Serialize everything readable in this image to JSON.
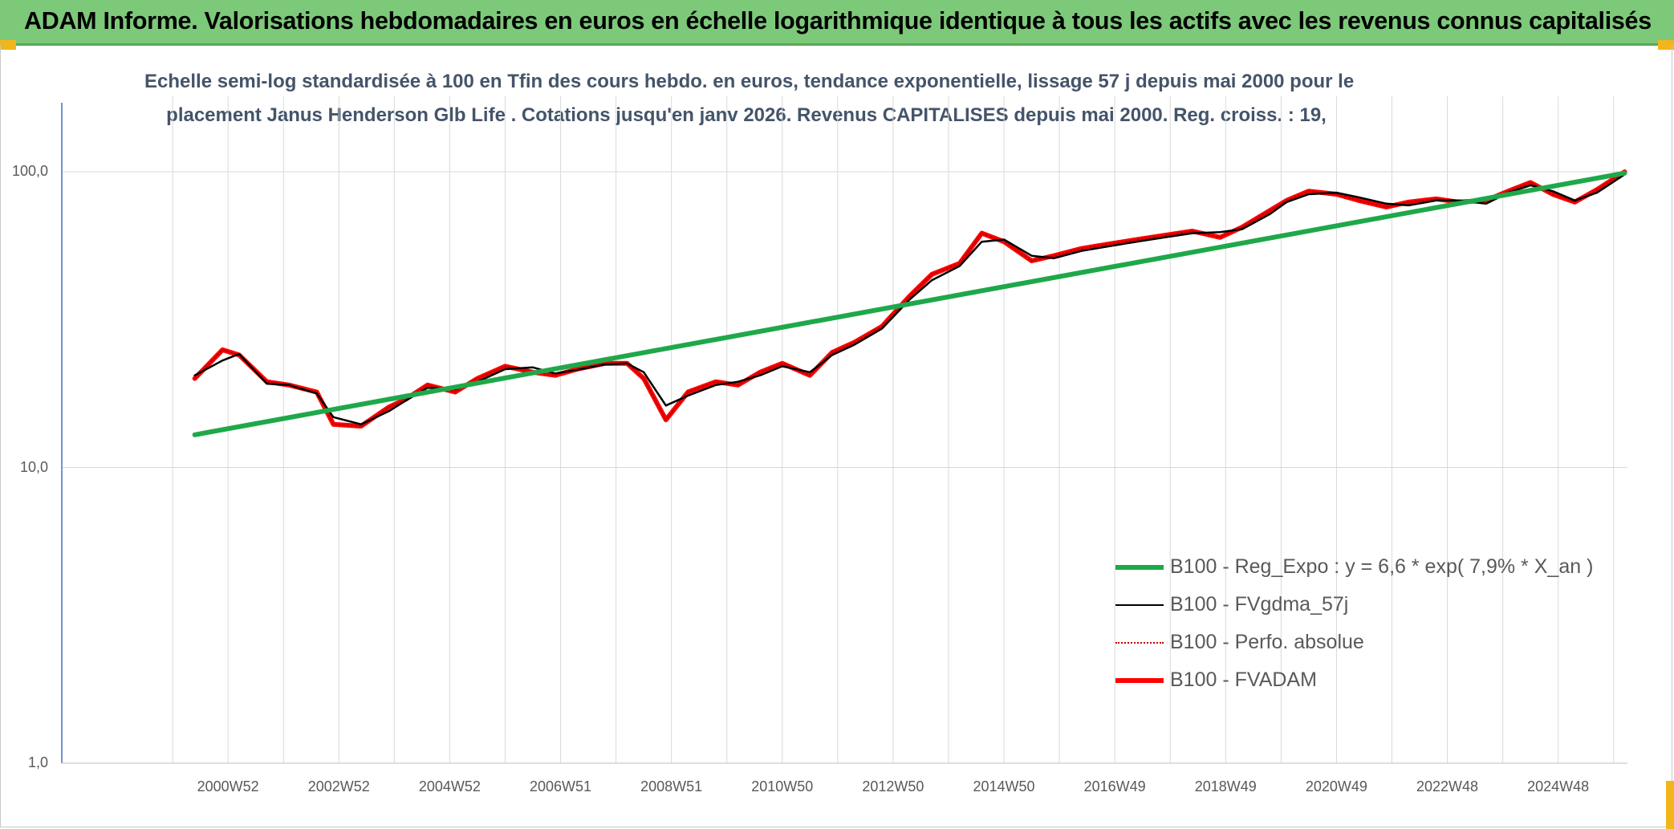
{
  "banner": {
    "title": "ADAM Informe. Valorisations hebdomadaires en euros en échelle logarithmique identique à tous les actifs avec les revenus connus capitalisés"
  },
  "chart_data": {
    "type": "line",
    "title_line1": "Echelle semi-log standardisée à 100 en Tfin des cours hebdo. en euros, tendance exponentielle, lissage 57 j depuis mai 2000 pour le",
    "title_line2": "placement Janus Henderson Glb Life . Cotations jusqu'en janv 2026. Revenus CAPITALISES depuis mai 2000. Reg. croiss. : 19,",
    "y_scale": "log",
    "ylim": [
      1,
      180
    ],
    "y_ticks": [
      {
        "value": 100,
        "label": "100,0"
      },
      {
        "value": 10,
        "label": "10,0"
      },
      {
        "value": 1,
        "label": "1,0"
      }
    ],
    "xlim": [
      1998.0,
      2026.25
    ],
    "x_ticks": [
      {
        "x": 2001.0,
        "label": "2000W52"
      },
      {
        "x": 2003.0,
        "label": "2002W52"
      },
      {
        "x": 2005.0,
        "label": "2004W52"
      },
      {
        "x": 2007.0,
        "label": "2006W51"
      },
      {
        "x": 2009.0,
        "label": "2008W51"
      },
      {
        "x": 2011.0,
        "label": "2010W50"
      },
      {
        "x": 2013.0,
        "label": "2012W50"
      },
      {
        "x": 2015.0,
        "label": "2014W50"
      },
      {
        "x": 2017.0,
        "label": "2016W49"
      },
      {
        "x": 2019.0,
        "label": "2018W49"
      },
      {
        "x": 2021.0,
        "label": "2020W49"
      },
      {
        "x": 2023.0,
        "label": "2022W48"
      },
      {
        "x": 2025.0,
        "label": "2024W48"
      }
    ],
    "grid": true,
    "legend_position": "bottom-right",
    "series": [
      {
        "name": "B100 - Reg_Expo : y = 6,6 * exp( 7,9% *  X_an )",
        "color": "#1fa84a",
        "style": "thick",
        "x": [
          2000.4,
          2026.2
        ],
        "y": [
          12.9,
          99.0
        ]
      },
      {
        "name": "B100 - FVgdma_57j",
        "color": "#000000",
        "style": "thin",
        "x": [
          2000.4,
          2000.9,
          2001.2,
          2001.7,
          2002.1,
          2002.6,
          2002.9,
          2003.4,
          2003.9,
          2004.2,
          2004.6,
          2005.1,
          2005.5,
          2006.0,
          2006.5,
          2006.9,
          2007.3,
          2007.8,
          2008.2,
          2008.5,
          2008.9,
          2009.3,
          2009.8,
          2010.2,
          2010.6,
          2011.0,
          2011.5,
          2011.9,
          2012.3,
          2012.8,
          2013.3,
          2013.7,
          2014.2,
          2014.6,
          2015.0,
          2015.5,
          2015.9,
          2016.4,
          2016.9,
          2017.4,
          2017.9,
          2018.4,
          2018.9,
          2019.3,
          2019.8,
          2020.1,
          2020.5,
          2021.0,
          2021.4,
          2021.9,
          2022.3,
          2022.8,
          2023.2,
          2023.7,
          2024.1,
          2024.5,
          2024.9,
          2025.3,
          2025.7,
          2026.2
        ],
        "y": [
          20.5,
          23.0,
          24.2,
          19.2,
          19.0,
          17.8,
          14.8,
          14.0,
          15.5,
          16.8,
          18.6,
          18.4,
          19.5,
          21.5,
          21.8,
          20.8,
          21.4,
          22.3,
          22.5,
          21.0,
          16.2,
          17.5,
          19.0,
          19.5,
          20.5,
          22.0,
          21.0,
          24.0,
          26.0,
          29.5,
          37.0,
          43.0,
          48.0,
          58.0,
          59.0,
          52.0,
          51.0,
          54.0,
          56.0,
          58.0,
          60.0,
          62.0,
          62.5,
          64.0,
          72.0,
          79.0,
          84.0,
          85.0,
          82.0,
          78.0,
          77.0,
          80.0,
          80.0,
          78.0,
          85.0,
          90.0,
          86.0,
          80.0,
          85.0,
          98.0
        ]
      },
      {
        "name": "B100 - Perfo. absolue",
        "color": "#c00000",
        "style": "dotted",
        "x": [
          2000.4,
          2000.9,
          2001.2,
          2001.7,
          2002.1,
          2002.6,
          2002.9,
          2003.4,
          2003.9,
          2004.2,
          2004.6,
          2005.1,
          2005.5,
          2006.0,
          2006.5,
          2006.9,
          2007.3,
          2007.8,
          2008.2,
          2008.5,
          2008.9,
          2009.3,
          2009.8,
          2010.2,
          2010.6,
          2011.0,
          2011.5,
          2011.9,
          2012.3,
          2012.8,
          2013.3,
          2013.7,
          2014.2,
          2014.6,
          2015.0,
          2015.5,
          2015.9,
          2016.4,
          2016.9,
          2017.4,
          2017.9,
          2018.4,
          2018.9,
          2019.3,
          2019.8,
          2020.1,
          2020.5,
          2021.0,
          2021.4,
          2021.9,
          2022.3,
          2022.8,
          2023.2,
          2023.7,
          2024.1,
          2024.5,
          2024.9,
          2025.3,
          2025.7,
          2026.2
        ],
        "y": [
          20.0,
          25.0,
          24.0,
          19.5,
          19.0,
          18.0,
          14.0,
          13.8,
          16.0,
          17.0,
          19.0,
          18.0,
          20.0,
          22.0,
          21.0,
          20.5,
          21.5,
          22.5,
          22.5,
          20.0,
          14.5,
          18.0,
          19.5,
          19.0,
          21.0,
          22.5,
          20.5,
          24.5,
          26.5,
          30.0,
          38.0,
          45.0,
          49.0,
          62.0,
          58.0,
          50.0,
          52.0,
          55.0,
          57.0,
          59.0,
          61.0,
          63.0,
          60.0,
          65.0,
          74.0,
          80.0,
          86.0,
          84.0,
          80.0,
          76.0,
          79.0,
          81.0,
          79.0,
          80.0,
          86.0,
          92.0,
          84.0,
          79.0,
          87.0,
          100.0
        ]
      },
      {
        "name": "B100 - FVADAM",
        "color": "#ff0000",
        "style": "thick",
        "x": [
          2000.4,
          2000.9,
          2001.2,
          2001.7,
          2002.1,
          2002.6,
          2002.9,
          2003.4,
          2003.9,
          2004.2,
          2004.6,
          2005.1,
          2005.5,
          2006.0,
          2006.5,
          2006.9,
          2007.3,
          2007.8,
          2008.2,
          2008.5,
          2008.9,
          2009.3,
          2009.8,
          2010.2,
          2010.6,
          2011.0,
          2011.5,
          2011.9,
          2012.3,
          2012.8,
          2013.3,
          2013.7,
          2014.2,
          2014.6,
          2015.0,
          2015.5,
          2015.9,
          2016.4,
          2016.9,
          2017.4,
          2017.9,
          2018.4,
          2018.9,
          2019.3,
          2019.8,
          2020.1,
          2020.5,
          2021.0,
          2021.4,
          2021.9,
          2022.3,
          2022.8,
          2023.2,
          2023.7,
          2024.1,
          2024.5,
          2024.9,
          2025.3,
          2025.7,
          2026.2
        ],
        "y": [
          20.0,
          25.0,
          24.0,
          19.5,
          19.0,
          18.0,
          14.0,
          13.8,
          16.0,
          17.0,
          19.0,
          18.0,
          20.0,
          22.0,
          21.0,
          20.5,
          21.5,
          22.5,
          22.5,
          20.0,
          14.5,
          18.0,
          19.5,
          19.0,
          21.0,
          22.5,
          20.5,
          24.5,
          26.5,
          30.0,
          38.0,
          45.0,
          49.0,
          62.0,
          58.0,
          50.0,
          52.0,
          55.0,
          57.0,
          59.0,
          61.0,
          63.0,
          60.0,
          65.0,
          74.0,
          80.0,
          86.0,
          84.0,
          80.0,
          76.0,
          79.0,
          81.0,
          79.0,
          80.0,
          86.0,
          92.0,
          84.0,
          79.0,
          87.0,
          100.0
        ]
      }
    ],
    "legend_order": [
      0,
      1,
      2,
      3
    ]
  }
}
